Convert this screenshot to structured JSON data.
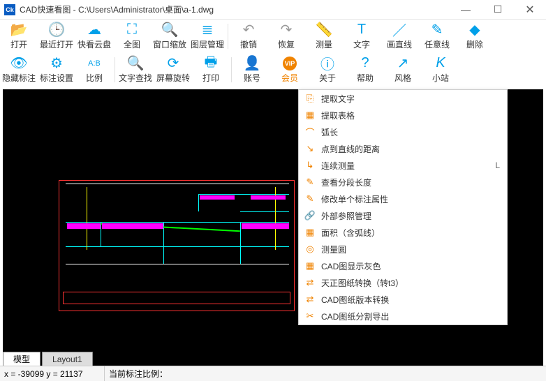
{
  "titlebar": {
    "app_badge": "Ck",
    "title": "CAD快速看图 - C:\\Users\\Administrator\\桌面\\a-1.dwg"
  },
  "toolbar_row1": [
    {
      "icon": "📂",
      "label": "打开",
      "cls": "blue",
      "name": "open"
    },
    {
      "icon": "🕒",
      "label": "最近打开",
      "cls": "blue",
      "name": "recent"
    },
    {
      "icon": "☁",
      "label": "快看云盘",
      "cls": "blue",
      "name": "cloud"
    },
    {
      "icon": "⛶",
      "label": "全图",
      "cls": "blue",
      "name": "full-view"
    },
    {
      "icon": "🔍",
      "label": "窗口缩放",
      "cls": "blue",
      "name": "zoom-window"
    },
    {
      "icon": "≣",
      "label": "图层管理",
      "cls": "blue",
      "name": "layers"
    },
    {
      "sep": true
    },
    {
      "icon": "↶",
      "label": "撤销",
      "cls": "gray",
      "name": "undo"
    },
    {
      "icon": "↷",
      "label": "恢复",
      "cls": "gray",
      "name": "redo"
    },
    {
      "icon": "📏",
      "label": "测量",
      "cls": "blue",
      "name": "measure"
    },
    {
      "icon": "T",
      "label": "文字",
      "cls": "blue",
      "name": "text"
    },
    {
      "icon": "／",
      "label": "画直线",
      "cls": "blue",
      "name": "line"
    },
    {
      "icon": "✎",
      "label": "任意线",
      "cls": "blue",
      "name": "freeline"
    },
    {
      "icon": "◆",
      "label": "删除",
      "cls": "blue",
      "name": "delete"
    }
  ],
  "toolbar_row2": [
    {
      "icon": "👁",
      "label": "隐藏标注",
      "cls": "blue",
      "name": "hide-annot"
    },
    {
      "icon": "⚙",
      "label": "标注设置",
      "cls": "blue",
      "name": "annot-settings"
    },
    {
      "icon": "A:B",
      "label": "比例",
      "cls": "blue",
      "name": "scale",
      "small": true
    },
    {
      "sep": true
    },
    {
      "icon": "🔍",
      "label": "文字查找",
      "cls": "blue",
      "name": "find-text"
    },
    {
      "icon": "⟳",
      "label": "屏幕旋转",
      "cls": "blue",
      "name": "rotate"
    },
    {
      "icon": "🖶",
      "label": "打印",
      "cls": "blue",
      "name": "print"
    },
    {
      "sep": true
    },
    {
      "icon": "👤",
      "label": "账号",
      "cls": "blue",
      "name": "account"
    },
    {
      "icon": "VIP",
      "label": "会员",
      "cls": "orange",
      "name": "vip",
      "orangelbl": true,
      "small": true
    },
    {
      "icon": "ⓘ",
      "label": "关于",
      "cls": "blue",
      "name": "about"
    },
    {
      "icon": "?",
      "label": "帮助",
      "cls": "blue",
      "name": "help"
    },
    {
      "icon": "↗",
      "label": "风格",
      "cls": "blue",
      "name": "theme"
    },
    {
      "icon": "K",
      "label": "小站",
      "cls": "blue",
      "name": "site",
      "italic": true
    }
  ],
  "context_menu": [
    {
      "icon": "⎘",
      "label": "提取文字",
      "name": "extract-text"
    },
    {
      "icon": "▦",
      "label": "提取表格",
      "name": "extract-table"
    },
    {
      "icon": "⌒",
      "label": "弧长",
      "name": "arc-length"
    },
    {
      "icon": "↘",
      "label": "点到直线的距离",
      "name": "point-line-dist"
    },
    {
      "icon": "↳",
      "label": "连续测量",
      "key": "L",
      "name": "continuous-measure"
    },
    {
      "icon": "✎",
      "label": "查看分段长度",
      "name": "segment-length"
    },
    {
      "icon": "✎",
      "label": "修改单个标注属性",
      "name": "edit-annot"
    },
    {
      "icon": "🔗",
      "label": "外部参照管理",
      "name": "xref-manage"
    },
    {
      "icon": "▦",
      "label": "面积（含弧线）",
      "name": "area-arc"
    },
    {
      "icon": "◎",
      "label": "测量圆",
      "name": "measure-circle"
    },
    {
      "icon": "▦",
      "label": "CAD图显示灰色",
      "name": "show-gray"
    },
    {
      "icon": "⇄",
      "label": "天正图纸转换（转t3）",
      "name": "convert-t3"
    },
    {
      "icon": "⇄",
      "label": "CAD图纸版本转换",
      "name": "convert-version"
    },
    {
      "icon": "✂",
      "label": "CAD图纸分割导出",
      "name": "split-export"
    }
  ],
  "tabs": [
    {
      "label": "模型",
      "active": true,
      "name": "tab-model"
    },
    {
      "label": "Layout1",
      "active": false,
      "name": "tab-layout1"
    }
  ],
  "status": {
    "coords": "x = -39099 y = 21137",
    "annot": "当前标注比例："
  },
  "colors": {
    "canvas_bg": "#000000",
    "frame": "#ff3333",
    "cyan": "#00ffff",
    "yellow": "#ffff00",
    "green": "#00ff00",
    "magenta": "#ff00ff",
    "white": "#ffffff",
    "blue_icon": "#00a0e9",
    "orange": "#f08300"
  }
}
